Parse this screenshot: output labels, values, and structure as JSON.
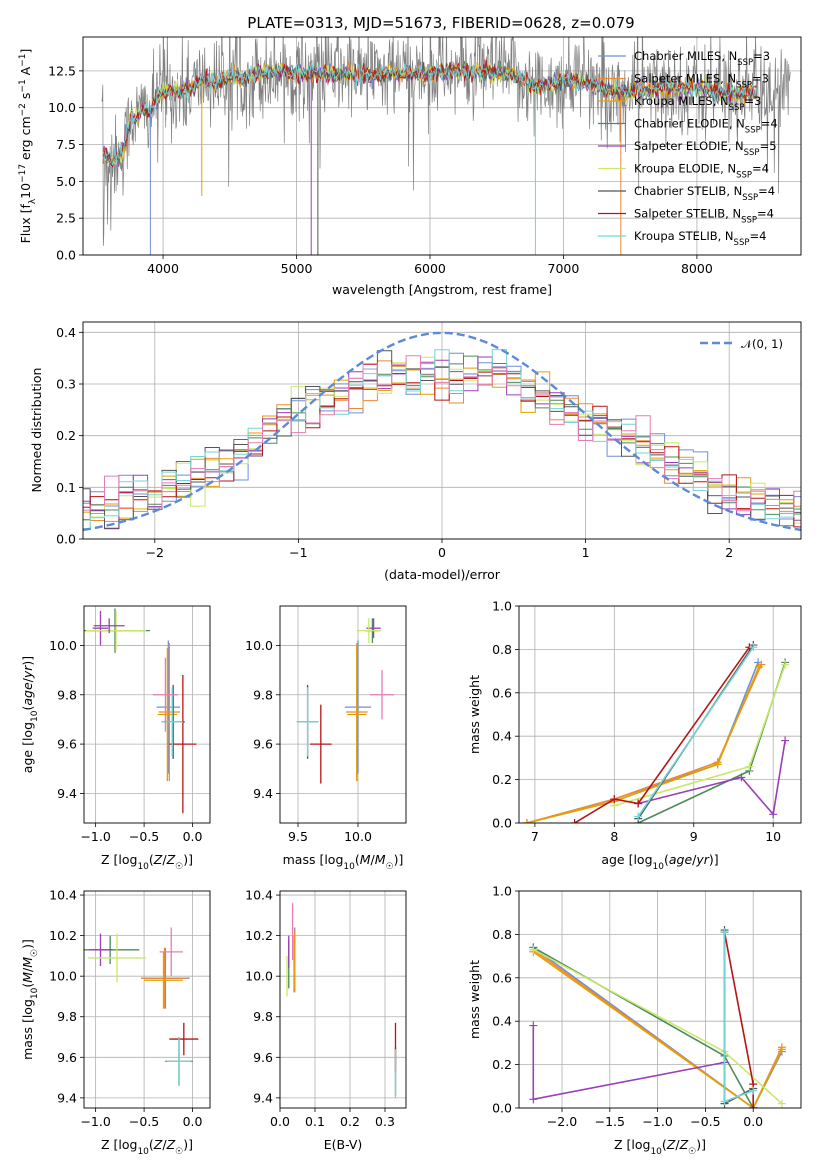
{
  "title": "PLATE=0313, MJD=51673, FIBERID=0628, z=0.079",
  "colors": {
    "series": [
      "#6f8fd8",
      "#ee8a33",
      "#e69f00",
      "#4a8c5a",
      "#9a3fb5",
      "#c9e86a",
      "#555555",
      "#b81414",
      "#72d6d6"
    ],
    "spectrum_data": "#808080",
    "gaussian": "#5b8ad8",
    "hist_alt": "#e87bb7"
  },
  "legend": {
    "series": [
      {
        "name": "Chabrier MILES, N",
        "sub": "SSP",
        "tail": "=3"
      },
      {
        "name": "Salpeter MILES, N",
        "sub": "SSP",
        "tail": "=3"
      },
      {
        "name": "Kroupa MILES, N",
        "sub": "SSP",
        "tail": "=3"
      },
      {
        "name": "Chabrier ELODIE, N",
        "sub": "SSP",
        "tail": "=4"
      },
      {
        "name": "Salpeter ELODIE, N",
        "sub": "SSP",
        "tail": "=5"
      },
      {
        "name": "Kroupa ELODIE, N",
        "sub": "SSP",
        "tail": "=4"
      },
      {
        "name": "Chabrier STELIB, N",
        "sub": "SSP",
        "tail": "=4"
      },
      {
        "name": "Salpeter STELIB, N",
        "sub": "SSP",
        "tail": "=4"
      },
      {
        "name": "Kroupa STELIB, N",
        "sub": "SSP",
        "tail": "=4"
      }
    ],
    "gaussian_label": "𝒩(0, 1)"
  },
  "chart_data": [
    {
      "id": "spectrum",
      "type": "line",
      "xlabel": "wavelength [Angstrom, rest frame]",
      "ylabel": "Flux [f_λ 10^-17 erg cm^-2 s^-1 A^-1]",
      "xlim": [
        3400,
        8780
      ],
      "ylim": [
        0,
        14.8
      ],
      "xticks": [
        4000,
        5000,
        6000,
        7000,
        8000
      ],
      "yticks": [
        0.0,
        2.5,
        5.0,
        7.5,
        10.0,
        12.5
      ],
      "xtick_labels": [
        "4000",
        "5000",
        "6000",
        "7000",
        "8000"
      ],
      "ytick_labels": [
        "0.0",
        "2.5",
        "5.0",
        "7.5",
        "10.0",
        "12.5"
      ],
      "model_wavelength_range": [
        3550,
        8450
      ],
      "model_profile": {
        "x": [
          3550,
          3620,
          3700,
          3760,
          3800,
          3850,
          3900,
          3950,
          4000,
          4100,
          4200,
          4300,
          4400,
          4500,
          4600,
          4700,
          4800,
          4900,
          5000,
          5100,
          5200,
          5400,
          5600,
          5800,
          6000,
          6200,
          6400,
          6600,
          6800,
          7000,
          7200,
          7400,
          7600,
          7800,
          8000,
          8200,
          8450
        ],
        "y": [
          6.8,
          6.5,
          6.9,
          9.5,
          9.2,
          10.0,
          9.7,
          10.6,
          11.2,
          11.0,
          11.3,
          11.9,
          11.7,
          12.1,
          12.0,
          12.3,
          12.4,
          12.5,
          12.2,
          12.4,
          12.3,
          12.3,
          12.2,
          12.4,
          12.3,
          12.5,
          12.4,
          12.3,
          11.4,
          11.8,
          11.6,
          11.0,
          11.2,
          11.4,
          11.3,
          11.0,
          11.0
        ]
      },
      "data_noise_std": 1.6,
      "line_ending_drops": [
        {
          "x": 3905,
          "y": 0.0
        },
        {
          "x": 4290,
          "y": 4.0
        },
        {
          "x": 5110,
          "y": 0.0
        },
        {
          "x": 5160,
          "y": 0.0
        },
        {
          "x": 6790,
          "y": 0.0
        },
        {
          "x": 7430,
          "y": 0.0
        }
      ]
    },
    {
      "id": "residual_hist",
      "type": "histogram",
      "xlabel": "(data-model)/error",
      "ylabel": "Normed distribution",
      "xlim": [
        -2.5,
        2.5
      ],
      "ylim": [
        0.0,
        0.42
      ],
      "xticks": [
        -2,
        -1,
        0,
        1,
        2
      ],
      "yticks": [
        0.0,
        0.1,
        0.2,
        0.3,
        0.4
      ],
      "xtick_labels": [
        "−2",
        "−1",
        "0",
        "1",
        "2"
      ],
      "ytick_labels": [
        "0.0",
        "0.1",
        "0.2",
        "0.3",
        "0.4"
      ],
      "bin_width": 0.1,
      "reference_curve": "standard normal N(0,1)",
      "envelope": {
        "x": [
          -2.5,
          -2.3,
          -2.1,
          -1.9,
          -1.7,
          -1.5,
          -1.3,
          -1.1,
          -0.9,
          -0.7,
          -0.5,
          -0.3,
          -0.1,
          0.1,
          0.3,
          0.5,
          0.7,
          0.9,
          1.1,
          1.3,
          1.5,
          1.7,
          1.9,
          2.1,
          2.3,
          2.5
        ],
        "y": [
          0.05,
          0.06,
          0.085,
          0.1,
          0.12,
          0.15,
          0.19,
          0.245,
          0.27,
          0.28,
          0.3,
          0.32,
          0.325,
          0.31,
          0.315,
          0.31,
          0.28,
          0.25,
          0.22,
          0.2,
          0.16,
          0.13,
          0.1,
          0.08,
          0.07,
          0.05
        ]
      }
    },
    {
      "id": "age_vs_Z",
      "type": "scatter",
      "xlabel": "Z [log10(Z/Z☉)]",
      "ylabel": "age [log10(age/yr)]",
      "xlim": [
        -1.12,
        0.18
      ],
      "ylim": [
        9.28,
        10.16
      ],
      "xticks": [
        -1.0,
        -0.5,
        0.0
      ],
      "yticks": [
        9.4,
        9.6,
        9.8,
        10.0
      ],
      "xtick_labels": [
        "−1.0",
        "−0.5",
        "0.0"
      ],
      "ytick_labels": [
        "9.4",
        "9.6",
        "9.8",
        "10.0"
      ],
      "points": [
        {
          "s": 0,
          "x": -0.25,
          "y": 9.75,
          "xe": 0.12,
          "ye": 0.27
        },
        {
          "s": 1,
          "x": -0.24,
          "y": 9.73,
          "xe": 0.11,
          "ye": 0.28
        },
        {
          "s": 2,
          "x": -0.26,
          "y": 9.72,
          "xe": 0.1,
          "ye": 0.27
        },
        {
          "s": 3,
          "x": -0.8,
          "y": 10.06,
          "xe": 0.36,
          "ye": 0.09
        },
        {
          "s": 4,
          "x": -0.95,
          "y": 10.07,
          "xe": 0.08,
          "ye": 0.07
        },
        {
          "s": 5,
          "x": -0.79,
          "y": 10.06,
          "xe": 0.31,
          "ye": 0.08
        },
        {
          "s": 6,
          "x": -0.2,
          "y": 9.69,
          "xe": 0.12,
          "ye": 0.15
        },
        {
          "s": 7,
          "x": -0.1,
          "y": 9.6,
          "xe": 0.14,
          "ye": 0.28
        },
        {
          "s": 8,
          "x": -0.21,
          "y": 9.69,
          "xe": 0.11,
          "ye": 0.14
        },
        {
          "s": 4,
          "x": -0.86,
          "y": 10.08,
          "xe": 0.16,
          "ye": 0.03
        },
        {
          "s": "alt",
          "x": -0.28,
          "y": 9.8,
          "xe": 0.13,
          "ye": 0.15
        }
      ]
    },
    {
      "id": "age_vs_mass",
      "type": "scatter",
      "xlabel": "mass [log10(M/M☉)]",
      "ylabel": "",
      "xlim": [
        9.35,
        10.4
      ],
      "ylim": [
        9.28,
        10.16
      ],
      "xticks": [
        9.5,
        10.0
      ],
      "yticks": [
        9.4,
        9.6,
        9.8,
        10.0
      ],
      "xtick_labels": [
        "9.5",
        "10.0"
      ],
      "ytick_labels": [
        "9.4",
        "9.6",
        "9.8",
        "10.0"
      ],
      "points": [
        {
          "s": 0,
          "x": 10.0,
          "y": 9.75,
          "xe": 0.11,
          "ye": 0.27
        },
        {
          "s": 1,
          "x": 9.99,
          "y": 9.73,
          "xe": 0.09,
          "ye": 0.28
        },
        {
          "s": 2,
          "x": 9.99,
          "y": 9.72,
          "xe": 0.08,
          "ye": 0.27
        },
        {
          "s": 3,
          "x": 10.12,
          "y": 10.06,
          "xe": 0.06,
          "ye": 0.05
        },
        {
          "s": 4,
          "x": 10.13,
          "y": 10.07,
          "xe": 0.06,
          "ye": 0.04
        },
        {
          "s": 5,
          "x": 10.09,
          "y": 10.06,
          "xe": 0.1,
          "ye": 0.05
        },
        {
          "s": 6,
          "x": 9.58,
          "y": 9.69,
          "xe": 0.09,
          "ye": 0.15
        },
        {
          "s": 7,
          "x": 9.69,
          "y": 9.6,
          "xe": 0.09,
          "ye": 0.16
        },
        {
          "s": 8,
          "x": 9.58,
          "y": 9.69,
          "xe": 0.09,
          "ye": 0.14
        },
        {
          "s": "alt",
          "x": 10.2,
          "y": 9.8,
          "xe": 0.1,
          "ye": 0.1
        }
      ]
    },
    {
      "id": "weight_vs_age",
      "type": "line",
      "xlabel": "age [log10(age/yr)]",
      "ylabel": "mass weight",
      "xlim": [
        6.8,
        10.35
      ],
      "ylim": [
        0.0,
        1.0
      ],
      "xticks": [
        7,
        8,
        9,
        10
      ],
      "yticks": [
        0.0,
        0.2,
        0.4,
        0.6,
        0.8,
        1.0
      ],
      "xtick_labels": [
        "7",
        "8",
        "9",
        "10"
      ],
      "ytick_labels": [
        "0.0",
        "0.2",
        "0.4",
        "0.6",
        "0.8",
        "1.0"
      ],
      "series_points": [
        {
          "s": 0,
          "x": [
            6.9,
            8.0,
            9.3,
            9.81
          ],
          "y": [
            0.0,
            0.11,
            0.27,
            0.74
          ]
        },
        {
          "s": 1,
          "x": [
            6.9,
            8.0,
            9.3,
            9.85
          ],
          "y": [
            0.0,
            0.11,
            0.28,
            0.73
          ]
        },
        {
          "s": 2,
          "x": [
            6.9,
            8.0,
            9.3,
            9.82
          ],
          "y": [
            0.0,
            0.1,
            0.27,
            0.72
          ]
        },
        {
          "s": 3,
          "x": [
            8.3,
            9.7,
            10.15
          ],
          "y": [
            0.0,
            0.24,
            0.74
          ]
        },
        {
          "s": 4,
          "x": [
            8.3,
            9.6,
            10.0,
            10.15
          ],
          "y": [
            0.09,
            0.21,
            0.04,
            0.38
          ]
        },
        {
          "s": 5,
          "x": [
            8.0,
            9.7,
            10.15
          ],
          "y": [
            0.08,
            0.26,
            0.73
          ]
        },
        {
          "s": 6,
          "x": [
            8.3,
            9.75
          ],
          "y": [
            0.02,
            0.82
          ]
        },
        {
          "s": 7,
          "x": [
            7.5,
            8.0,
            8.3,
            9.7
          ],
          "y": [
            0.0,
            0.11,
            0.09,
            0.81
          ]
        },
        {
          "s": 8,
          "x": [
            8.3,
            9.75
          ],
          "y": [
            0.03,
            0.81
          ]
        }
      ]
    },
    {
      "id": "mass_vs_Z",
      "type": "scatter",
      "xlabel": "Z [log10(Z/Z☉)]",
      "ylabel": "mass [log10(M/M☉)]",
      "xlim": [
        -1.12,
        0.18
      ],
      "ylim": [
        9.35,
        10.42
      ],
      "xticks": [
        -1.0,
        -0.5,
        0.0
      ],
      "yticks": [
        9.4,
        9.6,
        9.8,
        10.0,
        10.2,
        10.4
      ],
      "xtick_labels": [
        "−1.0",
        "−0.5",
        "0.0"
      ],
      "ytick_labels": [
        "9.4",
        "9.6",
        "9.8",
        "10.0",
        "10.2",
        "10.4"
      ],
      "points": [
        {
          "s": 0,
          "x": -0.28,
          "y": 9.99,
          "xe": 0.25,
          "ye": 0.15
        },
        {
          "s": 1,
          "x": -0.29,
          "y": 9.99,
          "xe": 0.23,
          "ye": 0.15
        },
        {
          "s": 2,
          "x": -0.3,
          "y": 9.98,
          "xe": 0.2,
          "ye": 0.14
        },
        {
          "s": 3,
          "x": -0.85,
          "y": 10.13,
          "xe": 0.3,
          "ye": 0.07
        },
        {
          "s": 4,
          "x": -0.95,
          "y": 10.13,
          "xe": 0.12,
          "ye": 0.08
        },
        {
          "s": 5,
          "x": -0.78,
          "y": 10.09,
          "xe": 0.3,
          "ye": 0.12
        },
        {
          "s": 6,
          "x": -0.14,
          "y": 9.58,
          "xe": 0.14,
          "ye": 0.12
        },
        {
          "s": 7,
          "x": -0.09,
          "y": 9.69,
          "xe": 0.15,
          "ye": 0.08
        },
        {
          "s": 8,
          "x": -0.14,
          "y": 9.58,
          "xe": 0.13,
          "ye": 0.12
        },
        {
          "s": "alt",
          "x": -0.22,
          "y": 10.12,
          "xe": 0.12,
          "ye": 0.12
        }
      ]
    },
    {
      "id": "mass_vs_EBV",
      "type": "scatter",
      "xlabel": "E(B-V)",
      "ylabel": "",
      "xlim": [
        0.0,
        0.36
      ],
      "ylim": [
        9.35,
        10.42
      ],
      "xticks": [
        0.0,
        0.1,
        0.2,
        0.3
      ],
      "yticks": [
        9.4,
        9.6,
        9.8,
        10.0,
        10.2,
        10.4
      ],
      "xtick_labels": [
        "0.0",
        "0.1",
        "0.2",
        "0.3"
      ],
      "ytick_labels": [
        "9.4",
        "9.6",
        "9.8",
        "10.0",
        "10.2",
        "10.4"
      ],
      "points": [
        {
          "s": 0,
          "x": 0.042,
          "y": 10.08,
          "xe": 0.0,
          "ye": 0.16
        },
        {
          "s": 1,
          "x": 0.042,
          "y": 10.08,
          "xe": 0.0,
          "ye": 0.15
        },
        {
          "s": 2,
          "x": 0.04,
          "y": 10.06,
          "xe": 0.0,
          "ye": 0.14
        },
        {
          "s": 3,
          "x": 0.025,
          "y": 10.06,
          "xe": 0.0,
          "ye": 0.12
        },
        {
          "s": 4,
          "x": 0.025,
          "y": 10.12,
          "xe": 0.0,
          "ye": 0.08
        },
        {
          "s": 5,
          "x": 0.02,
          "y": 10.0,
          "xe": 0.0,
          "ye": 0.1
        },
        {
          "s": 6,
          "x": 0.33,
          "y": 9.53,
          "xe": 0.0,
          "ye": 0.12
        },
        {
          "s": 7,
          "x": 0.33,
          "y": 9.65,
          "xe": 0.0,
          "ye": 0.12
        },
        {
          "s": 8,
          "x": 0.33,
          "y": 9.52,
          "xe": 0.0,
          "ye": 0.12
        },
        {
          "s": "alt",
          "x": 0.036,
          "y": 10.22,
          "xe": 0.0,
          "ye": 0.14
        }
      ]
    },
    {
      "id": "weight_vs_Z",
      "type": "line",
      "xlabel": "Z [log10(Z/Z☉)]",
      "ylabel": "mass weight",
      "xlim": [
        -2.45,
        0.5
      ],
      "ylim": [
        0.0,
        1.0
      ],
      "xticks": [
        -2.0,
        -1.5,
        -1.0,
        -0.5,
        0.0
      ],
      "yticks": [
        0.0,
        0.2,
        0.4,
        0.6,
        0.8,
        1.0
      ],
      "xtick_labels": [
        "−2.0",
        "−1.5",
        "−1.0",
        "−0.5",
        "0.0"
      ],
      "ytick_labels": [
        "0.0",
        "0.2",
        "0.4",
        "0.6",
        "0.8",
        "1.0"
      ],
      "series_points": [
        {
          "s": 0,
          "x": [
            -2.3,
            0.0,
            0.3
          ],
          "y": [
            0.74,
            0.0,
            0.26
          ]
        },
        {
          "s": 1,
          "x": [
            -2.3,
            0.0,
            0.3
          ],
          "y": [
            0.73,
            0.0,
            0.28
          ]
        },
        {
          "s": 2,
          "x": [
            -2.3,
            0.0,
            0.3
          ],
          "y": [
            0.72,
            0.0,
            0.27
          ]
        },
        {
          "s": 3,
          "x": [
            -2.3,
            -0.3,
            0.0
          ],
          "y": [
            0.74,
            0.24,
            0.0
          ]
        },
        {
          "s": 4,
          "x": [
            -2.3,
            -2.3,
            -0.3
          ],
          "y": [
            0.38,
            0.04,
            0.21
          ]
        },
        {
          "s": 5,
          "x": [
            -2.3,
            -0.3,
            0.3
          ],
          "y": [
            0.73,
            0.26,
            0.02
          ]
        },
        {
          "s": 6,
          "x": [
            -0.3,
            -0.3,
            0.0
          ],
          "y": [
            0.82,
            0.02,
            0.09
          ]
        },
        {
          "s": 7,
          "x": [
            -0.3,
            0.0,
            0.0
          ],
          "y": [
            0.81,
            0.11,
            0.0
          ]
        },
        {
          "s": 8,
          "x": [
            -0.3,
            -0.3,
            0.0
          ],
          "y": [
            0.81,
            0.03,
            0.08
          ]
        }
      ]
    }
  ]
}
